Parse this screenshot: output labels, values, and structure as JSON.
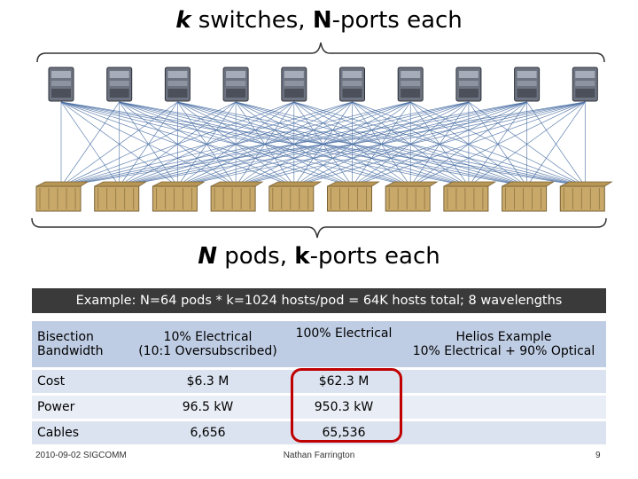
{
  "title": {
    "k": "k",
    "mid": " switches, ",
    "n": "N",
    "end": "-ports each"
  },
  "subtitle": {
    "n": "N",
    "mid": " pods, ",
    "k": "k",
    "end": "-ports each"
  },
  "banner": "Example: N=64 pods * k=1024 hosts/pod = 64K hosts total; 8 wavelengths",
  "table": {
    "header": {
      "label": "Bisection Bandwidth",
      "col1_line1": "10% Electrical",
      "col1_line2": "(10:1 Oversubscribed)",
      "col2": "100% Electrical",
      "col3_line1": "Helios Example",
      "col3_line2": "10% Electrical + 90% Optical"
    },
    "rows": [
      {
        "label": "Cost",
        "col1": "$6.3 M",
        "col2": "$62.3 M",
        "col3": ""
      },
      {
        "label": "Power",
        "col1": "96.5 kW",
        "col2": "950.3 kW",
        "col3": ""
      },
      {
        "label": "Cables",
        "col1": "6,656",
        "col2": "65,536",
        "col3": ""
      }
    ]
  },
  "footer": {
    "left": "2010-09-02 SIGCOMM",
    "center": "Nathan Farrington",
    "right": "9"
  },
  "colors": {
    "links": "#4a6fa5",
    "highlight": "#c00000",
    "banner": "#3a3a3a"
  }
}
